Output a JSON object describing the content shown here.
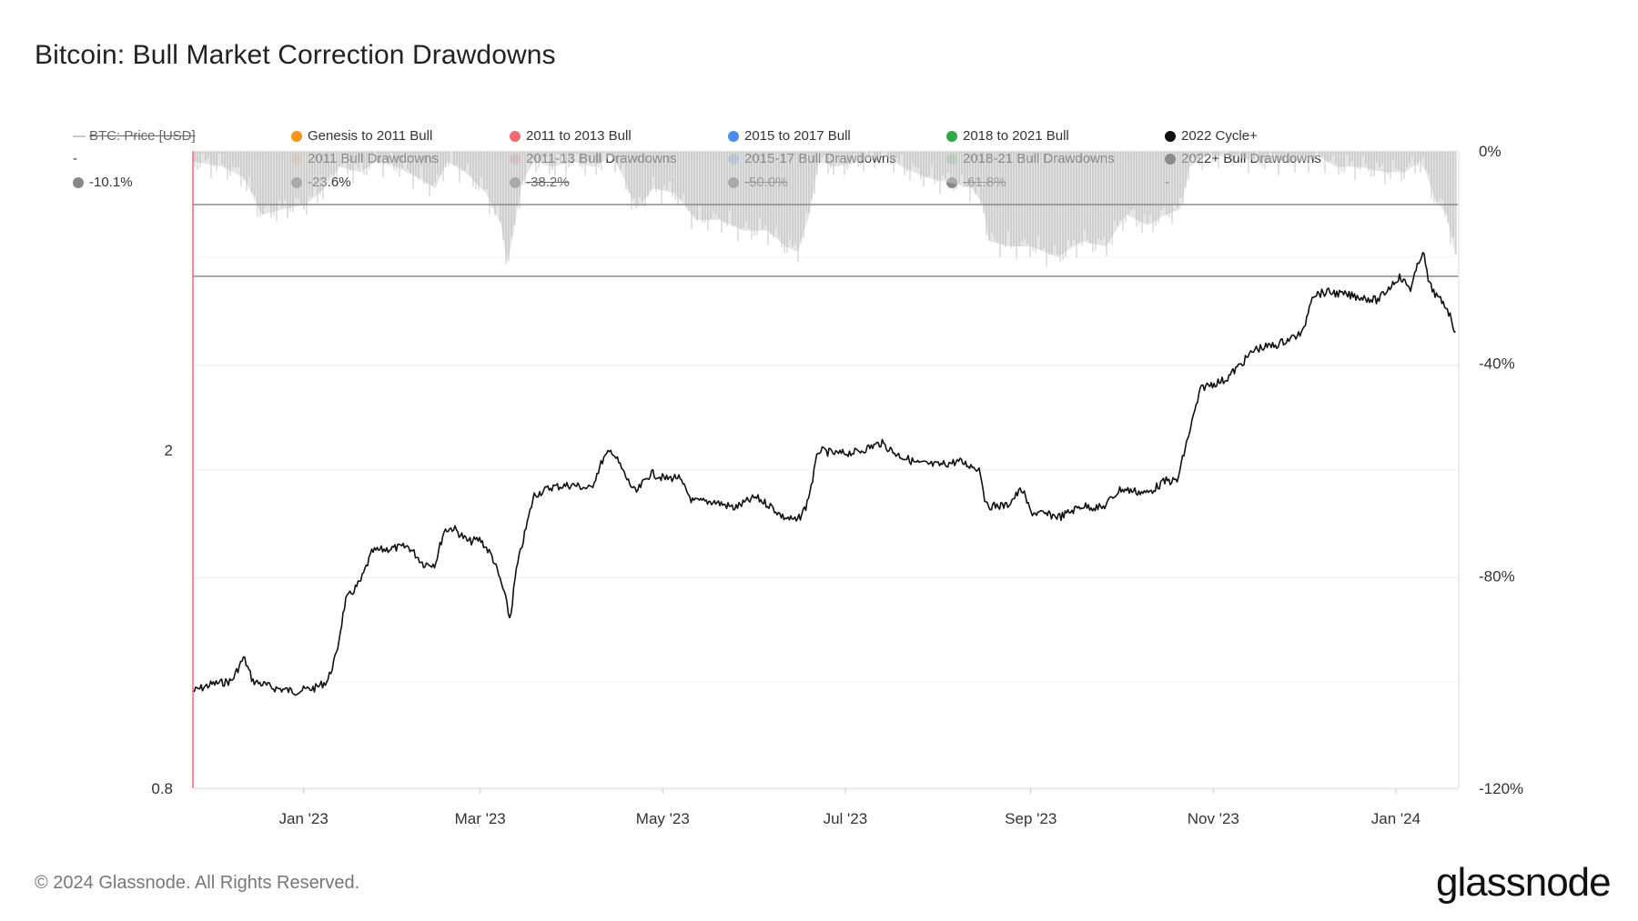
{
  "title": "Bitcoin: Bull Market Correction Drawdowns",
  "footer": "© 2024 Glassnode. All Rights Reserved.",
  "logo": "glassnode",
  "legend": [
    {
      "label": "BTC: Price [USD]",
      "symbol": "line",
      "color": "#c8c8c8",
      "struck": true
    },
    {
      "label": "Genesis to 2011 Bull",
      "symbol": "dot",
      "color": "#f7931a",
      "struck": false
    },
    {
      "label": "2011 to 2013 Bull",
      "symbol": "dot",
      "color": "#ef6b73",
      "struck": false
    },
    {
      "label": "2015 to 2017 Bull",
      "symbol": "dot",
      "color": "#4a8fe7",
      "struck": false
    },
    {
      "label": "2018 to 2021 Bull",
      "symbol": "dot",
      "color": "#2eaa4a",
      "struck": false
    },
    {
      "label": "2022 Cycle+",
      "symbol": "dot",
      "color": "#111111",
      "struck": false
    },
    {
      "label": "-",
      "symbol": "none",
      "color": "",
      "struck": false
    },
    {
      "label": "2011 Bull Drawdowns",
      "symbol": "dot",
      "color": "#fde4c6",
      "struck": false
    },
    {
      "label": "2011-13 Bull Drawdowns",
      "symbol": "dot",
      "color": "#f9c9cc",
      "struck": false
    },
    {
      "label": "2015-17 Bull Drawdowns",
      "symbol": "dot",
      "color": "#b4d4f7",
      "struck": false
    },
    {
      "label": "2018-21 Bull Drawdowns",
      "symbol": "dot",
      "color": "#b6e8c2",
      "struck": false
    },
    {
      "label": "2022+ Bull Drawdowns",
      "symbol": "dot",
      "color": "#333333",
      "struck": false
    },
    {
      "label": "-10.1%",
      "symbol": "dot",
      "color": "#888888",
      "struck": false
    },
    {
      "label": "-23.6%",
      "symbol": "dot",
      "color": "#888888",
      "struck": false
    },
    {
      "label": "-38.2%",
      "symbol": "dot",
      "color": "#888888",
      "struck": true
    },
    {
      "label": "-50.0%",
      "symbol": "dot",
      "color": "#888888",
      "struck": true
    },
    {
      "label": "-61.8%",
      "symbol": "dot",
      "color": "#888888",
      "struck": true
    },
    {
      "label": "-",
      "symbol": "none",
      "color": "",
      "struck": false
    }
  ],
  "chart_data": {
    "type": "line",
    "x_ticks": [
      "Jan '23",
      "Mar '23",
      "May '23",
      "Jul '23",
      "Sep '23",
      "Nov '23",
      "Jan '24"
    ],
    "x_range": [
      "2022-11-25",
      "2024-01-22"
    ],
    "y_left": {
      "scale": "log",
      "ticks": [
        "2",
        "0.8"
      ],
      "range": [
        0.8,
        4.5
      ]
    },
    "y_right": {
      "ticks": [
        "0%",
        "-40%",
        "-80%",
        "-120%"
      ],
      "range": [
        -120,
        0
      ]
    },
    "reference_lines": [
      {
        "label": "-10.1%",
        "value": -10.1
      },
      {
        "label": "-23.6%",
        "value": -23.6
      }
    ],
    "series": [
      {
        "name": "2022 Cycle+",
        "axis": "left",
        "points": [
          [
            "2022-11-25",
            1.04
          ],
          [
            "2022-12-01",
            1.06
          ],
          [
            "2022-12-08",
            1.07
          ],
          [
            "2022-12-12",
            1.14
          ],
          [
            "2022-12-15",
            1.07
          ],
          [
            "2022-12-22",
            1.05
          ],
          [
            "2022-12-29",
            1.04
          ],
          [
            "2023-01-05",
            1.05
          ],
          [
            "2023-01-09",
            1.07
          ],
          [
            "2023-01-12",
            1.15
          ],
          [
            "2023-01-15",
            1.33
          ],
          [
            "2023-01-20",
            1.4
          ],
          [
            "2023-01-24",
            1.52
          ],
          [
            "2023-01-29",
            1.53
          ],
          [
            "2023-02-05",
            1.54
          ],
          [
            "2023-02-10",
            1.47
          ],
          [
            "2023-02-14",
            1.47
          ],
          [
            "2023-02-17",
            1.61
          ],
          [
            "2023-02-20",
            1.62
          ],
          [
            "2023-02-25",
            1.56
          ],
          [
            "2023-03-01",
            1.57
          ],
          [
            "2023-03-05",
            1.5
          ],
          [
            "2023-03-09",
            1.36
          ],
          [
            "2023-03-11",
            1.26
          ],
          [
            "2023-03-13",
            1.44
          ],
          [
            "2023-03-16",
            1.6
          ],
          [
            "2023-03-19",
            1.77
          ],
          [
            "2023-03-25",
            1.81
          ],
          [
            "2023-04-01",
            1.82
          ],
          [
            "2023-04-07",
            1.8
          ],
          [
            "2023-04-11",
            1.95
          ],
          [
            "2023-04-14",
            2.0
          ],
          [
            "2023-04-19",
            1.85
          ],
          [
            "2023-04-22",
            1.78
          ],
          [
            "2023-04-27",
            1.88
          ],
          [
            "2023-05-02",
            1.85
          ],
          [
            "2023-05-06",
            1.86
          ],
          [
            "2023-05-11",
            1.74
          ],
          [
            "2023-05-18",
            1.74
          ],
          [
            "2023-05-25",
            1.71
          ],
          [
            "2023-06-01",
            1.76
          ],
          [
            "2023-06-06",
            1.72
          ],
          [
            "2023-06-10",
            1.67
          ],
          [
            "2023-06-15",
            1.65
          ],
          [
            "2023-06-18",
            1.72
          ],
          [
            "2023-06-20",
            1.84
          ],
          [
            "2023-06-22",
            2.0
          ],
          [
            "2023-06-28",
            1.98
          ],
          [
            "2023-07-05",
            1.99
          ],
          [
            "2023-07-13",
            2.04
          ],
          [
            "2023-07-18",
            1.98
          ],
          [
            "2023-07-25",
            1.93
          ],
          [
            "2023-08-01",
            1.92
          ],
          [
            "2023-08-08",
            1.94
          ],
          [
            "2023-08-15",
            1.9
          ],
          [
            "2023-08-17",
            1.72
          ],
          [
            "2023-08-24",
            1.72
          ],
          [
            "2023-08-29",
            1.8
          ],
          [
            "2023-09-01",
            1.69
          ],
          [
            "2023-09-11",
            1.67
          ],
          [
            "2023-09-18",
            1.72
          ],
          [
            "2023-09-25",
            1.71
          ],
          [
            "2023-10-01",
            1.8
          ],
          [
            "2023-10-10",
            1.78
          ],
          [
            "2023-10-16",
            1.84
          ],
          [
            "2023-10-20",
            1.84
          ],
          [
            "2023-10-24",
            2.1
          ],
          [
            "2023-10-28",
            2.37
          ],
          [
            "2023-11-05",
            2.42
          ],
          [
            "2023-11-10",
            2.52
          ],
          [
            "2023-11-15",
            2.63
          ],
          [
            "2023-11-22",
            2.66
          ],
          [
            "2023-12-01",
            2.75
          ],
          [
            "2023-12-04",
            3.05
          ],
          [
            "2023-12-10",
            3.07
          ],
          [
            "2023-12-14",
            3.05
          ],
          [
            "2023-12-20",
            3.03
          ],
          [
            "2023-12-26",
            3.0
          ],
          [
            "2024-01-02",
            3.2
          ],
          [
            "2024-01-06",
            3.1
          ],
          [
            "2024-01-10",
            3.44
          ],
          [
            "2024-01-12",
            3.14
          ],
          [
            "2024-01-15",
            3.02
          ],
          [
            "2024-01-18",
            2.95
          ],
          [
            "2024-01-21",
            2.75
          ]
        ]
      },
      {
        "name": "2022+ Bull Drawdowns",
        "axis": "right",
        "type": "area",
        "points": [
          [
            "2022-11-25",
            -2
          ],
          [
            "2022-12-05",
            -3
          ],
          [
            "2022-12-12",
            -5
          ],
          [
            "2022-12-18",
            -12
          ],
          [
            "2022-12-25",
            -11
          ],
          [
            "2023-01-02",
            -10
          ],
          [
            "2023-01-08",
            -7
          ],
          [
            "2023-01-13",
            -3
          ],
          [
            "2023-01-20",
            -4
          ],
          [
            "2023-01-25",
            -2
          ],
          [
            "2023-02-01",
            -3
          ],
          [
            "2023-02-08",
            -5
          ],
          [
            "2023-02-14",
            -7
          ],
          [
            "2023-02-18",
            -2
          ],
          [
            "2023-02-24",
            -4
          ],
          [
            "2023-03-03",
            -8
          ],
          [
            "2023-03-08",
            -14
          ],
          [
            "2023-03-10",
            -21
          ],
          [
            "2023-03-12",
            -16
          ],
          [
            "2023-03-15",
            -6
          ],
          [
            "2023-03-19",
            -2
          ],
          [
            "2023-03-25",
            -3
          ],
          [
            "2023-04-01",
            -2
          ],
          [
            "2023-04-08",
            -3
          ],
          [
            "2023-04-14",
            -1
          ],
          [
            "2023-04-18",
            -5
          ],
          [
            "2023-04-22",
            -11
          ],
          [
            "2023-04-28",
            -7
          ],
          [
            "2023-05-05",
            -8
          ],
          [
            "2023-05-12",
            -13
          ],
          [
            "2023-05-20",
            -13
          ],
          [
            "2023-05-28",
            -15
          ],
          [
            "2023-06-05",
            -15
          ],
          [
            "2023-06-11",
            -18
          ],
          [
            "2023-06-15",
            -19
          ],
          [
            "2023-06-19",
            -12
          ],
          [
            "2023-06-22",
            -2
          ],
          [
            "2023-06-28",
            -3
          ],
          [
            "2023-07-06",
            -2
          ],
          [
            "2023-07-14",
            -1
          ],
          [
            "2023-07-20",
            -3
          ],
          [
            "2023-07-28",
            -5
          ],
          [
            "2023-08-05",
            -6
          ],
          [
            "2023-08-12",
            -7
          ],
          [
            "2023-08-16",
            -10
          ],
          [
            "2023-08-18",
            -17
          ],
          [
            "2023-08-25",
            -18
          ],
          [
            "2023-09-01",
            -18
          ],
          [
            "2023-09-10",
            -20
          ],
          [
            "2023-09-18",
            -17
          ],
          [
            "2023-09-26",
            -18
          ],
          [
            "2023-10-03",
            -12
          ],
          [
            "2023-10-10",
            -14
          ],
          [
            "2023-10-16",
            -12
          ],
          [
            "2023-10-21",
            -11
          ],
          [
            "2023-10-24",
            -3
          ],
          [
            "2023-10-30",
            -1
          ],
          [
            "2023-11-08",
            -1
          ],
          [
            "2023-11-16",
            -2
          ],
          [
            "2023-11-24",
            -2
          ],
          [
            "2023-12-02",
            -2
          ],
          [
            "2023-12-06",
            -1
          ],
          [
            "2023-12-12",
            -3
          ],
          [
            "2023-12-20",
            -3
          ],
          [
            "2023-12-28",
            -4
          ],
          [
            "2024-01-04",
            -4
          ],
          [
            "2024-01-09",
            -2
          ],
          [
            "2024-01-11",
            -4
          ],
          [
            "2024-01-14",
            -9
          ],
          [
            "2024-01-18",
            -12
          ],
          [
            "2024-01-21",
            -20
          ]
        ]
      }
    ]
  }
}
